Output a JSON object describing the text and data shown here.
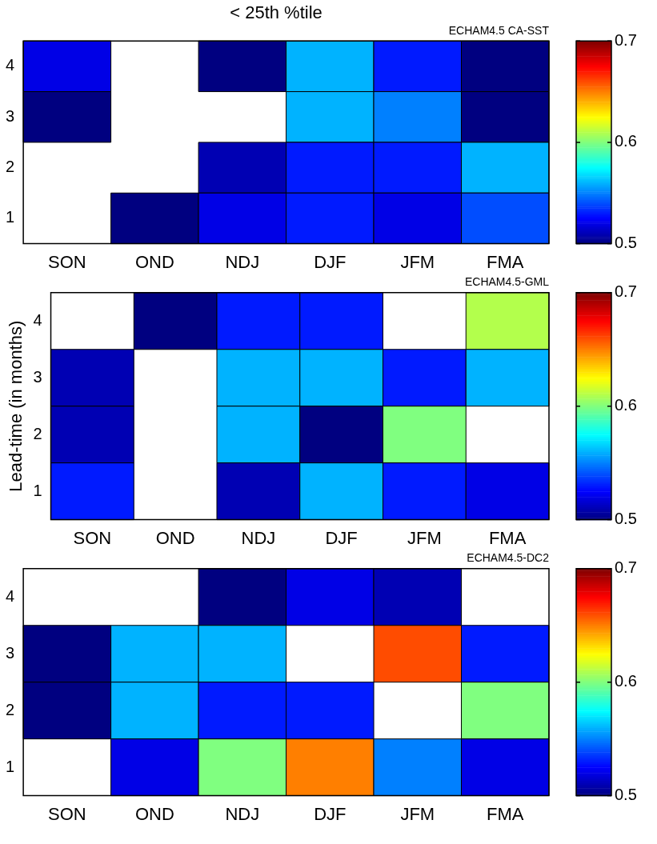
{
  "chart_data": [
    {
      "type": "heatmap",
      "title": "< 25th %tile",
      "subtitle": "ECHAM4.5 CA-SST",
      "categories": [
        "SON",
        "OND",
        "NDJ",
        "DJF",
        "JFM",
        "FMA"
      ],
      "y_categories": [
        "4",
        "3",
        "2",
        "1"
      ],
      "cells": [
        [
          0.52,
          null,
          0.5,
          0.56,
          0.53,
          0.5
        ],
        [
          0.5,
          null,
          null,
          0.56,
          0.55,
          0.5
        ],
        [
          null,
          null,
          0.51,
          0.53,
          0.53,
          0.56
        ],
        [
          null,
          0.5,
          0.52,
          0.53,
          0.52,
          0.54
        ]
      ],
      "clim": [
        0.5,
        0.7
      ],
      "cticks": [
        0.5,
        0.6,
        0.7
      ]
    },
    {
      "type": "heatmap",
      "subtitle": "ECHAM4.5-GML",
      "ylabel": "Lead-time (in months)",
      "categories": [
        "SON",
        "OND",
        "NDJ",
        "DJF",
        "JFM",
        "FMA"
      ],
      "y_categories": [
        "4",
        "3",
        "2",
        "1"
      ],
      "cells": [
        [
          null,
          0.5,
          0.53,
          0.53,
          null,
          0.61
        ],
        [
          0.51,
          null,
          0.56,
          0.56,
          0.53,
          0.56
        ],
        [
          0.51,
          null,
          0.56,
          0.5,
          0.6,
          null
        ],
        [
          0.53,
          null,
          0.51,
          0.56,
          0.53,
          0.52
        ]
      ],
      "clim": [
        0.5,
        0.7
      ],
      "cticks": [
        0.5,
        0.6,
        0.7
      ]
    },
    {
      "type": "heatmap",
      "subtitle": "ECHAM4.5-DC2",
      "categories": [
        "SON",
        "OND",
        "NDJ",
        "DJF",
        "JFM",
        "FMA"
      ],
      "y_categories": [
        "4",
        "3",
        "2",
        "1"
      ],
      "cells": [
        [
          null,
          null,
          0.5,
          0.52,
          0.51,
          null
        ],
        [
          0.5,
          0.56,
          0.56,
          null,
          0.66,
          0.53
        ],
        [
          0.5,
          0.56,
          0.53,
          0.53,
          null,
          0.6
        ],
        [
          null,
          0.52,
          0.6,
          0.65,
          0.55,
          0.52
        ]
      ],
      "clim": [
        0.5,
        0.7
      ],
      "cticks": [
        0.5,
        0.6,
        0.7
      ]
    }
  ]
}
